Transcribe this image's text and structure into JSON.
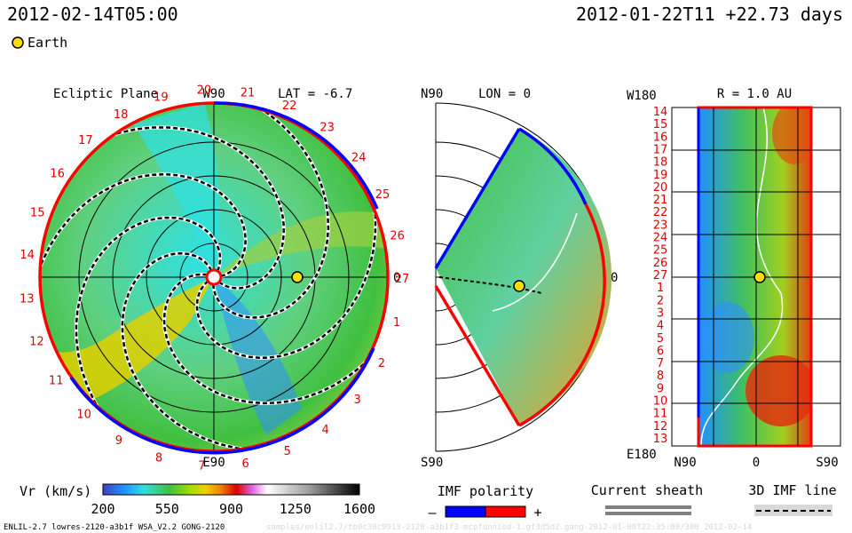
{
  "header": {
    "left_time": "2012-02-14T05:00",
    "right_time": "2012-01-22T11 +22.73 days",
    "legend_label": "Earth"
  },
  "ecliptic": {
    "title": "Ecliptic Plane",
    "top_label": "W90",
    "bottom_label": "E90",
    "right_label": "0",
    "lat_label": "LAT = -6.7",
    "rotation_numbers": [
      "20",
      "21",
      "22",
      "23",
      "24",
      "25",
      "26",
      "27",
      "1",
      "2",
      "3",
      "4",
      "5",
      "6",
      "7",
      "8",
      "9",
      "10",
      "11",
      "12",
      "13",
      "14",
      "15",
      "16",
      "17",
      "18",
      "19"
    ]
  },
  "meridional": {
    "title": "LON = 0",
    "top_label": "N90",
    "bottom_label": "S90",
    "right_label": "0"
  },
  "radial": {
    "title": "R = 1.0 AU",
    "top_label": "W180",
    "bottom_label": "E180",
    "x_labels": [
      "N90",
      "0",
      "S90"
    ],
    "y_labels": [
      "14",
      "15",
      "16",
      "17",
      "18",
      "19",
      "20",
      "21",
      "22",
      "23",
      "24",
      "25",
      "26",
      "27",
      "1",
      "2",
      "3",
      "4",
      "5",
      "6",
      "7",
      "8",
      "9",
      "10",
      "11",
      "12",
      "13"
    ]
  },
  "colorbar": {
    "label": "Vr (km/s)",
    "ticks": [
      200,
      550,
      900,
      1250,
      1600
    ],
    "colors": [
      "#4040d0",
      "#2090ff",
      "#30e0e0",
      "#40c040",
      "#a0e000",
      "#f0d000",
      "#f08000",
      "#e00000",
      "#e060e0",
      "#ffffff",
      "#c0c0c0",
      "#808080",
      "#404040",
      "#000000"
    ]
  },
  "imf": {
    "label": "IMF polarity",
    "minus": "–",
    "plus": "+",
    "negative_color": "#0000ff",
    "positive_color": "#ff0000"
  },
  "sheath": {
    "label": "Current sheath"
  },
  "imf3d": {
    "label": "3D IMF line"
  },
  "footer": {
    "model_text": "ENLIL-2.7 lowres-2120-a3b1f WSA_V2.2 GONG-2120",
    "faint_path": "samples/enlil2.7/tb0c30c9913-2120-a3b1f3-mcpfunnied-1.gf3d5d2.gang-2012-01-08T22:35:00/300 2012-02-14"
  },
  "colors": {
    "earth": "#ffdd00",
    "cyan": "#30e0e0",
    "green": "#40c040",
    "yellow": "#f0d000",
    "blue": "#2090ff"
  }
}
